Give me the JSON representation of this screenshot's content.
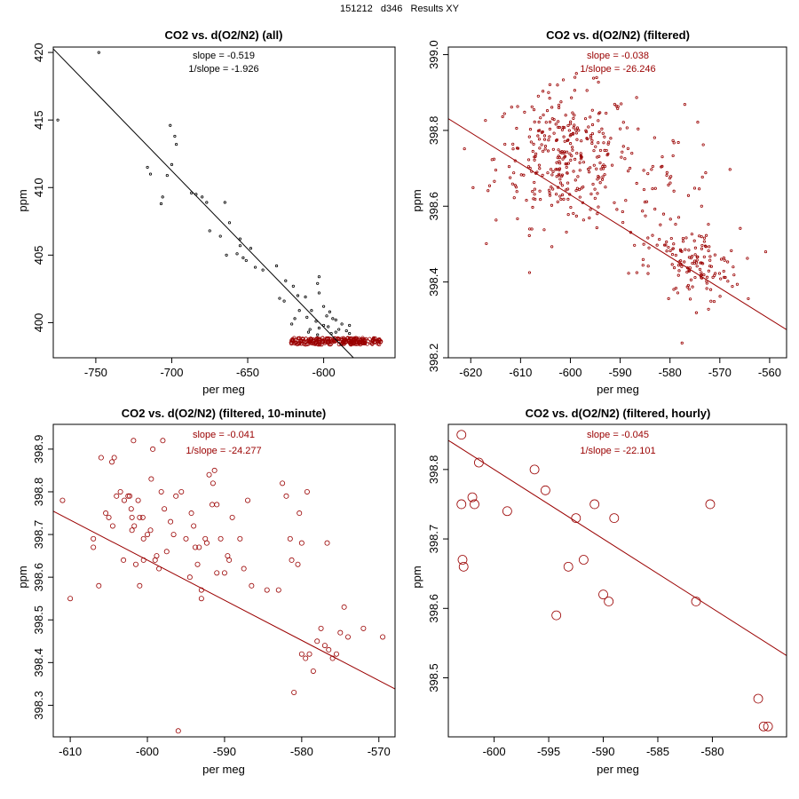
{
  "page_title": "151212   d346   Results XY",
  "colors": {
    "black": "#000000",
    "dark_red": "#9a0000"
  },
  "chart_data": [
    {
      "type": "scatter",
      "title": "CO2 vs. d(O2/N2) (all)",
      "xlabel": "per meg",
      "ylabel": "ppm",
      "xlim": [
        -778,
        -553
      ],
      "ylim": [
        397.4,
        420.4
      ],
      "xticks": [
        -750,
        -700,
        -650,
        -600
      ],
      "xtick_labels": [
        "-750",
        "-700",
        "-650",
        "-600"
      ],
      "yticks": [
        400,
        405,
        410,
        415,
        420
      ],
      "ytick_labels": [
        "400",
        "405",
        "410",
        "415",
        "420"
      ],
      "slope_label": "slope = -0.519",
      "inv_slope_label": "1/slope = -1.926",
      "annotation_color": "#000000",
      "fit_line": {
        "slope": -0.1157,
        "intercept": 330.25,
        "color": "#000000"
      },
      "series": [
        {
          "name": "all points",
          "color": "#000000",
          "marker_r": 1.2,
          "points": [
            [
              -748,
              420
            ],
            [
              -775,
              415
            ],
            [
              -701,
              414.6
            ],
            [
              -698,
              413.8
            ],
            [
              -697,
              413.2
            ],
            [
              -716,
              411.5
            ],
            [
              -700,
              411.7
            ],
            [
              -714,
              411
            ],
            [
              -703,
              410.9
            ],
            [
              -706,
              409.3
            ],
            [
              -707,
              408.8
            ],
            [
              -687,
              409.6
            ],
            [
              -684,
              409.5
            ],
            [
              -680,
              409.3
            ],
            [
              -677,
              408.9
            ],
            [
              -665,
              408.9
            ],
            [
              -662,
              407.4
            ],
            [
              -675,
              406.8
            ],
            [
              -668,
              406.4
            ],
            [
              -655,
              406.2
            ],
            [
              -655,
              405.7
            ],
            [
              -648,
              405.5
            ],
            [
              -657,
              405.1
            ],
            [
              -664,
              405
            ],
            [
              -653,
              404.8
            ],
            [
              -651,
              404.6
            ],
            [
              -645,
              404.1
            ],
            [
              -640,
              403.9
            ],
            [
              -631,
              404.2
            ],
            [
              -625,
              403.1
            ],
            [
              -620,
              402.7
            ],
            [
              -617,
              402
            ],
            [
              -629,
              401.8
            ],
            [
              -626,
              401.6
            ],
            [
              -612,
              401.9
            ],
            [
              -608,
              400.9
            ],
            [
              -604,
              402.9
            ],
            [
              -603,
              403.4
            ],
            [
              -603,
              402.2
            ],
            [
              -600,
              401.2
            ],
            [
              -598,
              400.5
            ],
            [
              -596,
              400.8
            ],
            [
              -594,
              400.3
            ],
            [
              -592,
              400.2
            ],
            [
              -605,
              400.1
            ],
            [
              -611,
              400.4
            ],
            [
              -616,
              400.9
            ],
            [
              -619,
              400.3
            ],
            [
              -600,
              399.8
            ],
            [
              -597,
              399.7
            ],
            [
              -590,
              399.5
            ],
            [
              -588,
              399.9
            ],
            [
              -585,
              399.4
            ],
            [
              -583,
              399.2
            ],
            [
              -610,
              399.3
            ],
            [
              -604,
              399.1
            ],
            [
              -595,
              399.2
            ],
            [
              -603,
              399.6
            ],
            [
              -609,
              399.5
            ],
            [
              -621,
              399.9
            ],
            [
              -583,
              399.8
            ],
            [
              -592,
              399.3
            ]
          ]
        },
        {
          "name": "filtered points",
          "color": "#9a0000",
          "marker_r": 1.8,
          "band": {
            "x_range": [
              -622,
              -562
            ],
            "y_center": 398.62,
            "y_jitter": 0.25,
            "count": 240
          }
        }
      ]
    },
    {
      "type": "scatter",
      "title": "CO2 vs. d(O2/N2) (filtered)",
      "xlabel": "per meg",
      "ylabel": "ppm",
      "xlim": [
        -624.5,
        -556.6
      ],
      "ylim": [
        398.2,
        399.02
      ],
      "xticks": [
        -620,
        -610,
        -600,
        -590,
        -580,
        -570,
        -560
      ],
      "xtick_labels": [
        "-620",
        "-610",
        "-600",
        "-590",
        "-580",
        "-570",
        "-560"
      ],
      "yticks": [
        398.2,
        398.4,
        398.6,
        398.8,
        399.0
      ],
      "ytick_labels": [
        "398.2",
        "398.4",
        "398.6",
        "398.8",
        "399.0"
      ],
      "slope_label": "slope = -0.038",
      "inv_slope_label": "1/slope = -26.246",
      "annotation_color": "#9a0000",
      "fit_line": {
        "slope": -0.0082,
        "intercept": 393.71,
        "color": "#9a0000"
      },
      "series": [
        {
          "name": "filtered points",
          "color": "#9a0000",
          "marker_r": 1.2,
          "clusters": [
            {
              "cx": -601,
              "cy": 398.73,
              "sx": 7,
              "sy": 0.09,
              "count": 330
            },
            {
              "cx": -580,
              "cy": 398.63,
              "sx": 5,
              "sy": 0.1,
              "count": 60
            },
            {
              "cx": -575,
              "cy": 398.44,
              "sx": 4.5,
              "sy": 0.05,
              "count": 120
            }
          ]
        }
      ]
    },
    {
      "type": "scatter",
      "title": "CO2 vs. d(O2/N2) (filtered, 10-minute)",
      "xlabel": "per meg",
      "ylabel": "ppm",
      "xlim": [
        -612.2,
        -567.9
      ],
      "ylim": [
        398.226,
        398.958
      ],
      "xticks": [
        -610,
        -600,
        -590,
        -580,
        -570
      ],
      "xtick_labels": [
        "-610",
        "-600",
        "-590",
        "-580",
        "-570"
      ],
      "yticks": [
        398.3,
        398.4,
        398.5,
        398.6,
        398.7,
        398.8,
        398.9
      ],
      "ytick_labels": [
        "398.3",
        "398.4",
        "398.5",
        "398.6",
        "398.7",
        "398.8",
        "398.9"
      ],
      "slope_label": "slope = -0.041",
      "inv_slope_label": "1/slope = -24.277",
      "annotation_color": "#9a0000",
      "fit_line": {
        "slope": -0.0094,
        "intercept": 393.0,
        "color": "#9a0000"
      },
      "series": [
        {
          "name": "10-minute means",
          "color": "#9a0000",
          "marker_r": 2.6,
          "points": [
            [
              -611,
              398.78
            ],
            [
              -610,
              398.55
            ],
            [
              -607,
              398.69
            ],
            [
              -607,
              398.67
            ],
            [
              -606.3,
              398.58
            ],
            [
              -606,
              398.88
            ],
            [
              -605.4,
              398.75
            ],
            [
              -605,
              398.74
            ],
            [
              -604.6,
              398.87
            ],
            [
              -604.3,
              398.88
            ],
            [
              -604.5,
              398.72
            ],
            [
              -604,
              398.79
            ],
            [
              -603.5,
              398.8
            ],
            [
              -603.1,
              398.64
            ],
            [
              -603,
              398.78
            ],
            [
              -602.5,
              398.79
            ],
            [
              -602.3,
              398.79
            ],
            [
              -602.1,
              398.76
            ],
            [
              -602,
              398.71
            ],
            [
              -602,
              398.74
            ],
            [
              -601.8,
              398.92
            ],
            [
              -601.7,
              398.72
            ],
            [
              -601.5,
              398.63
            ],
            [
              -601.2,
              398.78
            ],
            [
              -601,
              398.74
            ],
            [
              -601,
              398.58
            ],
            [
              -600.6,
              398.74
            ],
            [
              -600.5,
              398.64
            ],
            [
              -600.5,
              398.69
            ],
            [
              -600,
              398.7
            ],
            [
              -599.6,
              398.71
            ],
            [
              -599.5,
              398.83
            ],
            [
              -599.3,
              398.9
            ],
            [
              -599,
              398.64
            ],
            [
              -598.8,
              398.65
            ],
            [
              -598.5,
              398.62
            ],
            [
              -598.2,
              398.8
            ],
            [
              -598,
              398.92
            ],
            [
              -597.8,
              398.76
            ],
            [
              -597.5,
              398.66
            ],
            [
              -597,
              398.73
            ],
            [
              -596.6,
              398.7
            ],
            [
              -596.3,
              398.79
            ],
            [
              -596,
              398.24
            ],
            [
              -595.6,
              398.8
            ],
            [
              -595,
              398.69
            ],
            [
              -594.5,
              398.6
            ],
            [
              -594.3,
              398.75
            ],
            [
              -594,
              398.72
            ],
            [
              -593.8,
              398.67
            ],
            [
              -593.5,
              398.63
            ],
            [
              -593.3,
              398.67
            ],
            [
              -593,
              398.55
            ],
            [
              -593,
              398.57
            ],
            [
              -592.5,
              398.69
            ],
            [
              -592.3,
              398.68
            ],
            [
              -592,
              398.84
            ],
            [
              -591.6,
              398.77
            ],
            [
              -591.5,
              398.82
            ],
            [
              -591.3,
              398.85
            ],
            [
              -591,
              398.77
            ],
            [
              -591,
              398.61
            ],
            [
              -590.5,
              398.69
            ],
            [
              -590,
              398.61
            ],
            [
              -589.6,
              398.65
            ],
            [
              -589.4,
              398.64
            ],
            [
              -589,
              398.74
            ],
            [
              -588,
              398.69
            ],
            [
              -587.5,
              398.62
            ],
            [
              -587,
              398.78
            ],
            [
              -586.5,
              398.58
            ],
            [
              -584.5,
              398.57
            ],
            [
              -583,
              398.57
            ],
            [
              -582.5,
              398.82
            ],
            [
              -582,
              398.79
            ],
            [
              -581.5,
              398.69
            ],
            [
              -581.3,
              398.64
            ],
            [
              -581,
              398.33
            ],
            [
              -580.5,
              398.63
            ],
            [
              -580.3,
              398.75
            ],
            [
              -580,
              398.68
            ],
            [
              -580,
              398.42
            ],
            [
              -579.5,
              398.41
            ],
            [
              -579.3,
              398.8
            ],
            [
              -579,
              398.42
            ],
            [
              -578.5,
              398.38
            ],
            [
              -578,
              398.45
            ],
            [
              -577.5,
              398.48
            ],
            [
              -577,
              398.44
            ],
            [
              -576.7,
              398.68
            ],
            [
              -576.5,
              398.43
            ],
            [
              -576,
              398.41
            ],
            [
              -575.5,
              398.42
            ],
            [
              -575,
              398.47
            ],
            [
              -574.5,
              398.53
            ],
            [
              -574,
              398.46
            ],
            [
              -572,
              398.48
            ],
            [
              -569.5,
              398.46
            ]
          ]
        }
      ]
    },
    {
      "type": "scatter",
      "title": "CO2 vs. d(O2/N2) (filtered, hourly)",
      "xlabel": "per meg",
      "ylabel": "ppm",
      "xlim": [
        -604.2,
        -573.2
      ],
      "ylim": [
        398.415,
        398.865
      ],
      "xticks": [
        -600,
        -595,
        -590,
        -585,
        -580
      ],
      "xtick_labels": [
        "-600",
        "-595",
        "-590",
        "-585",
        "-580"
      ],
      "yticks": [
        398.5,
        398.6,
        398.7,
        398.8
      ],
      "ytick_labels": [
        "398.5",
        "398.6",
        "398.7",
        "398.8"
      ],
      "slope_label": "slope = -0.045",
      "inv_slope_label": "1/slope = -22.101",
      "annotation_color": "#9a0000",
      "fit_line": {
        "slope": -0.01,
        "intercept": 392.8,
        "color": "#9a0000"
      },
      "series": [
        {
          "name": "hourly means",
          "color": "#9a0000",
          "marker_r": 5,
          "points": [
            [
              -603,
              398.85
            ],
            [
              -603,
              398.75
            ],
            [
              -602.9,
              398.67
            ],
            [
              -602.8,
              398.66
            ],
            [
              -602,
              398.76
            ],
            [
              -601.8,
              398.75
            ],
            [
              -601.4,
              398.81
            ],
            [
              -598.8,
              398.74
            ],
            [
              -596.3,
              398.8
            ],
            [
              -595.3,
              398.77
            ],
            [
              -594.3,
              398.59
            ],
            [
              -593.2,
              398.66
            ],
            [
              -592.5,
              398.73
            ],
            [
              -591.8,
              398.67
            ],
            [
              -590.8,
              398.75
            ],
            [
              -590,
              398.62
            ],
            [
              -589.5,
              398.61
            ],
            [
              -589,
              398.73
            ],
            [
              -581.5,
              398.61
            ],
            [
              -580.2,
              398.75
            ],
            [
              -575.8,
              398.47
            ],
            [
              -575.3,
              398.43
            ],
            [
              -574.9,
              398.43
            ]
          ]
        }
      ]
    }
  ]
}
